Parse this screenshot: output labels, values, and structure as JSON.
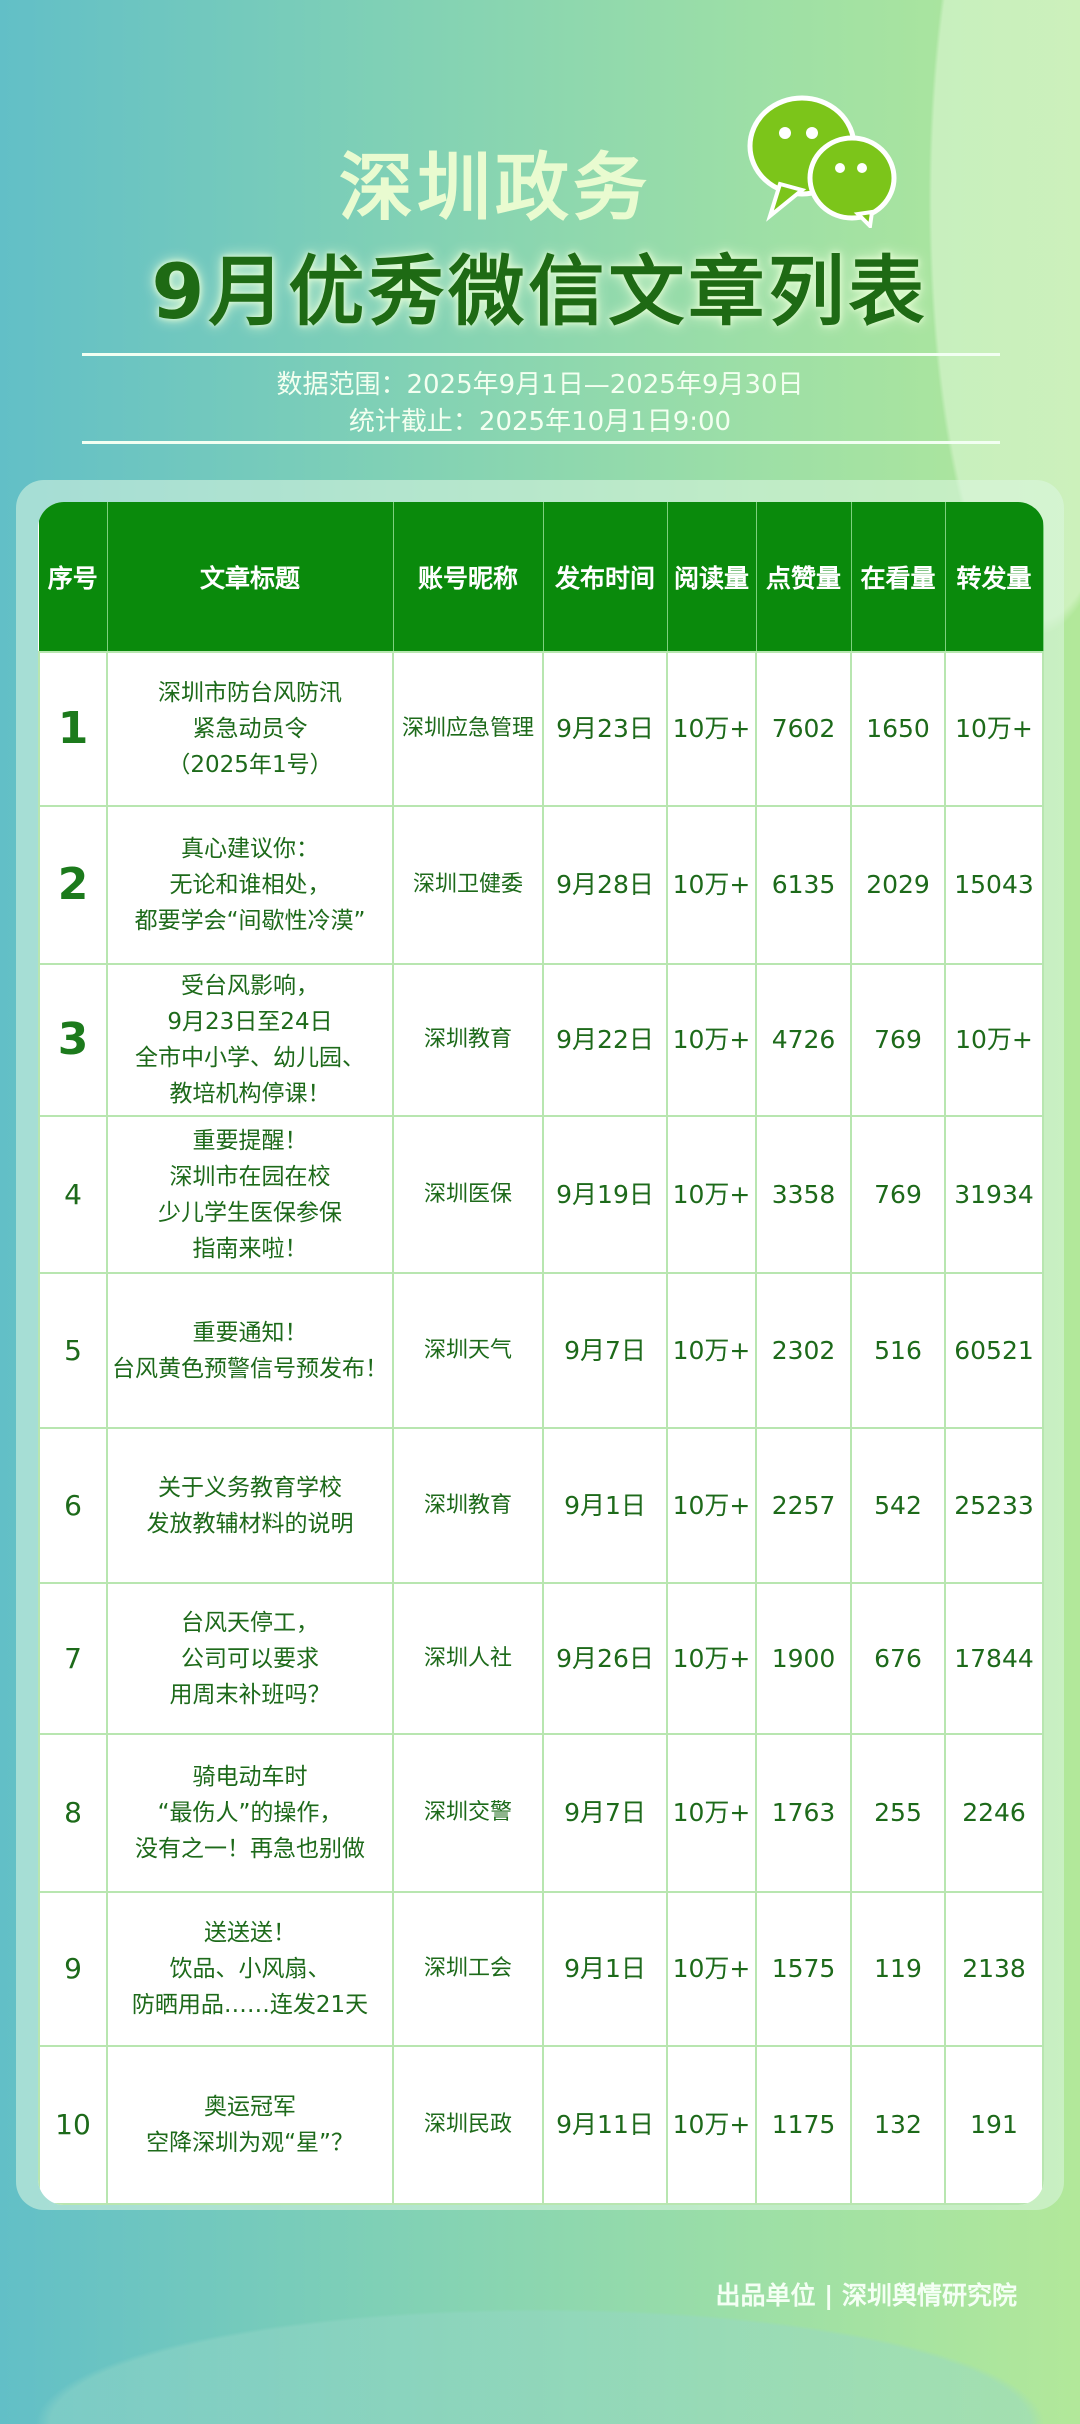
{
  "header": {
    "brand": "深圳政务",
    "title": "9月优秀微信文章列表",
    "data_range": "数据范围：2025年9月1日—2025年9月30日",
    "cutoff": "统计截止：2025年10月1日9:00",
    "logo_icon": "wechat-icon"
  },
  "colors": {
    "header_green": "#0a8a0c",
    "text_green": "#1d6a1a"
  },
  "table": {
    "columns": [
      "序号",
      "文章标题",
      "账号昵称",
      "发布时间",
      "阅读量",
      "点赞量",
      "在看量",
      "转发量"
    ],
    "rows": [
      {
        "rank": "1",
        "title": [
          "深圳市防台风防汛",
          "紧急动员令",
          "（2025年1号）"
        ],
        "account": "深圳应急管理",
        "date": "9月23日",
        "reads": "10万+",
        "likes": "7602",
        "watching": "1650",
        "shares": "10万+"
      },
      {
        "rank": "2",
        "title": [
          "真心建议你：",
          "无论和谁相处，",
          "都要学会“间歇性冷漠”"
        ],
        "account": "深圳卫健委",
        "date": "9月28日",
        "reads": "10万+",
        "likes": "6135",
        "watching": "2029",
        "shares": "15043"
      },
      {
        "rank": "3",
        "title": [
          "受台风影响，",
          "9月23日至24日",
          "全市中小学、幼儿园、",
          "教培机构停课！"
        ],
        "account": "深圳教育",
        "date": "9月22日",
        "reads": "10万+",
        "likes": "4726",
        "watching": "769",
        "shares": "10万+"
      },
      {
        "rank": "4",
        "title": [
          "重要提醒！",
          "深圳市在园在校",
          "少儿学生医保参保",
          "指南来啦！"
        ],
        "account": "深圳医保",
        "date": "9月19日",
        "reads": "10万+",
        "likes": "3358",
        "watching": "769",
        "shares": "31934"
      },
      {
        "rank": "5",
        "title": [
          "重要通知！",
          "台风黄色预警信号预发布！"
        ],
        "account": "深圳天气",
        "date": "9月7日",
        "reads": "10万+",
        "likes": "2302",
        "watching": "516",
        "shares": "60521"
      },
      {
        "rank": "6",
        "title": [
          "关于义务教育学校",
          "发放教辅材料的说明"
        ],
        "account": "深圳教育",
        "date": "9月1日",
        "reads": "10万+",
        "likes": "2257",
        "watching": "542",
        "shares": "25233"
      },
      {
        "rank": "7",
        "title": [
          "台风天停工，",
          "公司可以要求",
          "用周末补班吗？"
        ],
        "account": "深圳人社",
        "date": "9月26日",
        "reads": "10万+",
        "likes": "1900",
        "watching": "676",
        "shares": "17844"
      },
      {
        "rank": "8",
        "title": [
          "骑电动车时",
          "“最伤人”的操作，",
          "没有之一！再急也别做"
        ],
        "account": "深圳交警",
        "date": "9月7日",
        "reads": "10万+",
        "likes": "1763",
        "watching": "255",
        "shares": "2246"
      },
      {
        "rank": "9",
        "title": [
          "送送送！",
          "饮品、小风扇、",
          "防晒用品……连发21天"
        ],
        "account": "深圳工会",
        "date": "9月1日",
        "reads": "10万+",
        "likes": "1575",
        "watching": "119",
        "shares": "2138"
      },
      {
        "rank": "10",
        "title": [
          "奥运冠军",
          "空降深圳为观“星”？"
        ],
        "account": "深圳民政",
        "date": "9月11日",
        "reads": "10万+",
        "likes": "1175",
        "watching": "132",
        "shares": "191"
      }
    ]
  },
  "footer": "出品单位 | 深圳舆情研究院"
}
